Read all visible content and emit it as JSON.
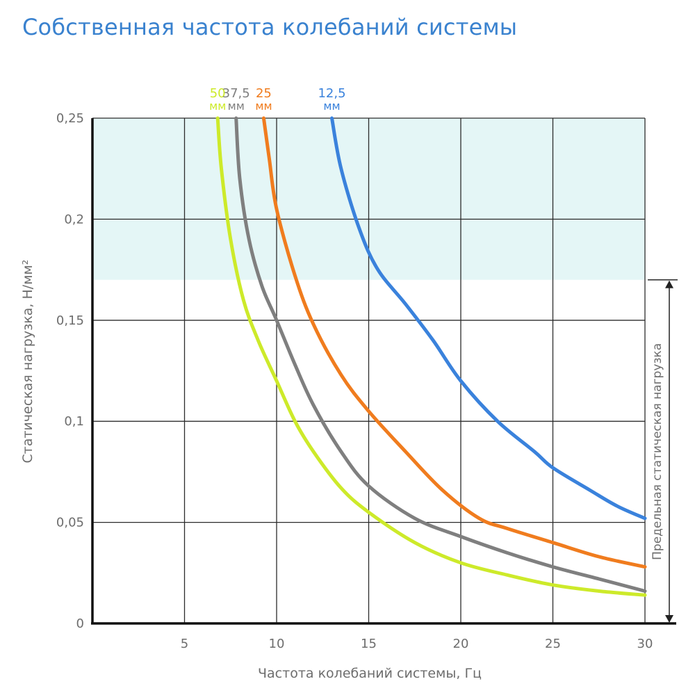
{
  "title": "Собственная частота колебаний системы",
  "chart_data": {
    "type": "line",
    "title": "Собственная частота колебаний системы",
    "xlabel": "Частота колебаний системы, Гц",
    "ylabel": "Статическая нагрузка, Н/мм²",
    "xlim": [
      0,
      30
    ],
    "ylim": [
      0,
      0.25
    ],
    "x_ticks": [
      {
        "value": 5,
        "label": "5"
      },
      {
        "value": 10,
        "label": "10"
      },
      {
        "value": 15,
        "label": "15"
      },
      {
        "value": 20,
        "label": "20"
      },
      {
        "value": 25,
        "label": "25"
      },
      {
        "value": 30,
        "label": "30"
      }
    ],
    "y_ticks": [
      {
        "value": 0,
        "label": "0"
      },
      {
        "value": 0.05,
        "label": "0,05"
      },
      {
        "value": 0.1,
        "label": "0,1"
      },
      {
        "value": 0.15,
        "label": "0,15"
      },
      {
        "value": 0.2,
        "label": "0,2"
      },
      {
        "value": 0.25,
        "label": "0,25"
      }
    ],
    "grid": true,
    "shaded_region": {
      "y_from": 0.17,
      "y_to": 0.25,
      "color": "#e4f6f6"
    },
    "limit_annotation": {
      "label": "Предельная статическая нагрузка",
      "y_from": 0,
      "y_to": 0.17
    },
    "series": [
      {
        "name_value": "50",
        "name_unit": "мм",
        "color": "#cdea2a",
        "points": [
          [
            6.8,
            0.25
          ],
          [
            7.0,
            0.225
          ],
          [
            7.5,
            0.19
          ],
          [
            8.2,
            0.16
          ],
          [
            9.0,
            0.14
          ],
          [
            10.0,
            0.12
          ],
          [
            11.0,
            0.1
          ],
          [
            12.0,
            0.085
          ],
          [
            13.5,
            0.067
          ],
          [
            15.0,
            0.055
          ],
          [
            17.5,
            0.04
          ],
          [
            20.0,
            0.03
          ],
          [
            22.5,
            0.024
          ],
          [
            25.0,
            0.019
          ],
          [
            27.5,
            0.016
          ],
          [
            30.0,
            0.014
          ]
        ]
      },
      {
        "name_value": "37,5",
        "name_unit": "мм",
        "color": "#7f7f7f",
        "points": [
          [
            7.8,
            0.25
          ],
          [
            8.0,
            0.22
          ],
          [
            8.5,
            0.19
          ],
          [
            9.2,
            0.167
          ],
          [
            10.0,
            0.15
          ],
          [
            11.0,
            0.128
          ],
          [
            12.0,
            0.108
          ],
          [
            13.5,
            0.085
          ],
          [
            15.0,
            0.068
          ],
          [
            17.5,
            0.052
          ],
          [
            20.0,
            0.043
          ],
          [
            22.5,
            0.035
          ],
          [
            25.0,
            0.028
          ],
          [
            27.5,
            0.022
          ],
          [
            30.0,
            0.016
          ]
        ]
      },
      {
        "name_value": "25",
        "name_unit": "мм",
        "color": "#f07c1e",
        "points": [
          [
            9.3,
            0.25
          ],
          [
            9.6,
            0.23
          ],
          [
            10.0,
            0.205
          ],
          [
            11.0,
            0.172
          ],
          [
            12.0,
            0.148
          ],
          [
            13.5,
            0.123
          ],
          [
            15.0,
            0.105
          ],
          [
            17.0,
            0.085
          ],
          [
            19.0,
            0.066
          ],
          [
            21.0,
            0.052
          ],
          [
            22.5,
            0.047
          ],
          [
            25.0,
            0.04
          ],
          [
            27.5,
            0.033
          ],
          [
            30.0,
            0.028
          ]
        ]
      },
      {
        "name_value": "12,5",
        "name_unit": "мм",
        "color": "#3a82dc",
        "points": [
          [
            13.0,
            0.25
          ],
          [
            13.5,
            0.225
          ],
          [
            14.5,
            0.195
          ],
          [
            15.5,
            0.175
          ],
          [
            17.0,
            0.158
          ],
          [
            18.5,
            0.14
          ],
          [
            20.0,
            0.12
          ],
          [
            22.0,
            0.1
          ],
          [
            24.0,
            0.085
          ],
          [
            25.0,
            0.077
          ],
          [
            27.0,
            0.066
          ],
          [
            28.5,
            0.058
          ],
          [
            30.0,
            0.052
          ]
        ]
      }
    ]
  }
}
